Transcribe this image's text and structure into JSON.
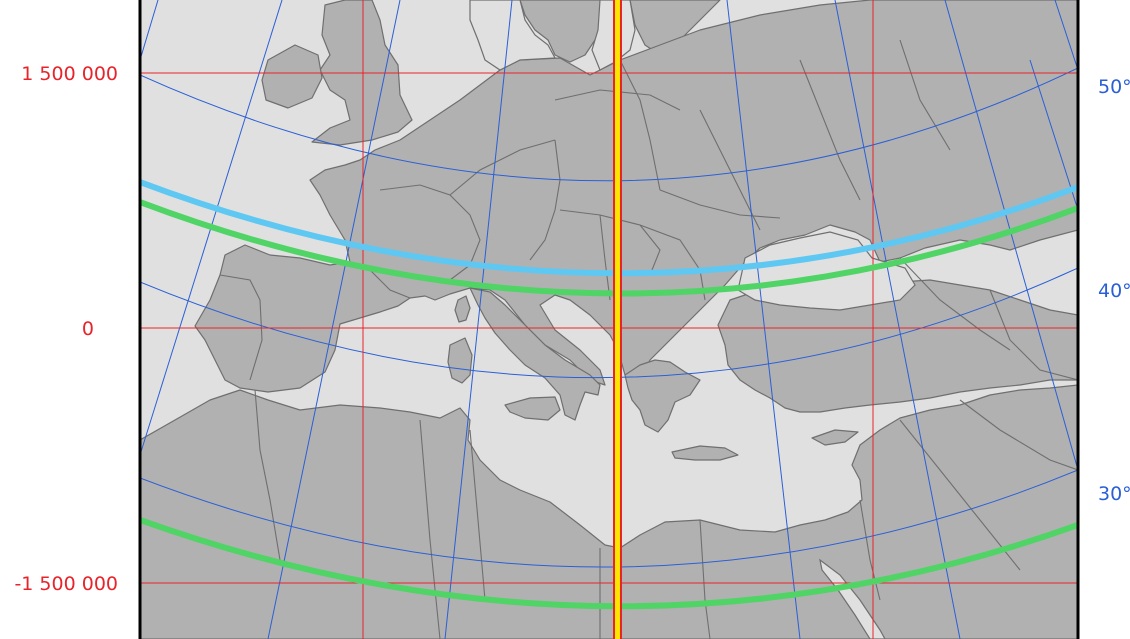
{
  "map": {
    "projection_axis_labels": [
      "1 500 000",
      "0",
      "-1 500 000"
    ],
    "latitude_labels": [
      "50°",
      "40°",
      "30°"
    ],
    "colors": {
      "sea": "#e0e0e0",
      "land": "#b1b1b1",
      "borders": "#6f6f6f",
      "grid_projected": "#e8232a",
      "graticule": "#2a5fd6",
      "standard_parallel_1": "#5ec8f2",
      "standard_parallels": "#4fd465",
      "central_meridian_outer": "#e8232a",
      "central_meridian_inner": "#ffe600",
      "frame": "#000000"
    },
    "layers": [
      "sea-area",
      "land-masses",
      "country-borders",
      "graticule-meridians",
      "graticule-parallels",
      "projected-grid",
      "standard-parallels",
      "central-meridian"
    ]
  }
}
